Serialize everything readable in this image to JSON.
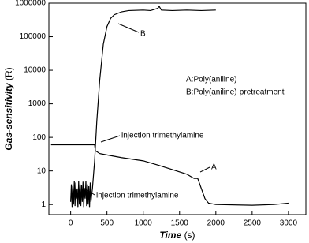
{
  "chart_data": {
    "type": "line",
    "xlabel": "Time",
    "xlabel_unit": "(s)",
    "ylabel": "Gas-sensitivity",
    "ylabel_unit": "(R)",
    "xlim": [
      -300,
      3240
    ],
    "xticks": [
      0,
      500,
      1000,
      1500,
      2000,
      2500,
      3000
    ],
    "ylim": [
      0.5,
      1000000
    ],
    "yticks": [
      1,
      10,
      100,
      1000,
      10000,
      100000,
      1000000
    ],
    "log_y": true,
    "grid": false,
    "series": [
      {
        "name": "A",
        "color": "#000000",
        "x": [
          -270,
          330,
          340,
          400,
          500,
          700,
          1000,
          1200,
          1400,
          1600,
          1700,
          1750,
          1800,
          1850,
          1900,
          2000,
          2500,
          2800,
          3000
        ],
        "values": [
          60,
          60,
          40,
          33,
          30,
          25,
          20,
          15,
          11,
          8,
          6,
          6,
          3,
          1.5,
          1.1,
          1,
          0.95,
          1,
          1.1
        ]
      },
      {
        "name": "B",
        "color": "#000000",
        "x": [
          0,
          10,
          20,
          30,
          40,
          50,
          60,
          70,
          80,
          90,
          100,
          110,
          120,
          130,
          140,
          150,
          160,
          170,
          180,
          190,
          200,
          210,
          220,
          230,
          240,
          250,
          260,
          270,
          280,
          290,
          300,
          330,
          360,
          400,
          450,
          500,
          550,
          600,
          700,
          800,
          1000,
          1100,
          1200,
          1220,
          1250,
          1400,
          1600,
          1800,
          2000
        ],
        "values": [
          1.2,
          4,
          0.8,
          3.5,
          1,
          5,
          0.9,
          4.5,
          1.5,
          3,
          0.8,
          5,
          1,
          4,
          0.9,
          3.8,
          1.2,
          4.8,
          0.8,
          3,
          1.5,
          5,
          0.9,
          4,
          1,
          3.5,
          0.8,
          4.5,
          1.2,
          2,
          3,
          20,
          300,
          5000,
          60000,
          200000,
          350000,
          450000,
          550000,
          600000,
          620000,
          600000,
          700000,
          800000,
          620000,
          600000,
          620000,
          600000,
          620000
        ]
      }
    ],
    "annotations": [
      "injection trimethylamine",
      "injection trimethylamine",
      "A",
      "B",
      "A:Poly(aniline)",
      "B:Poly(aniline)-pretreatment"
    ]
  }
}
